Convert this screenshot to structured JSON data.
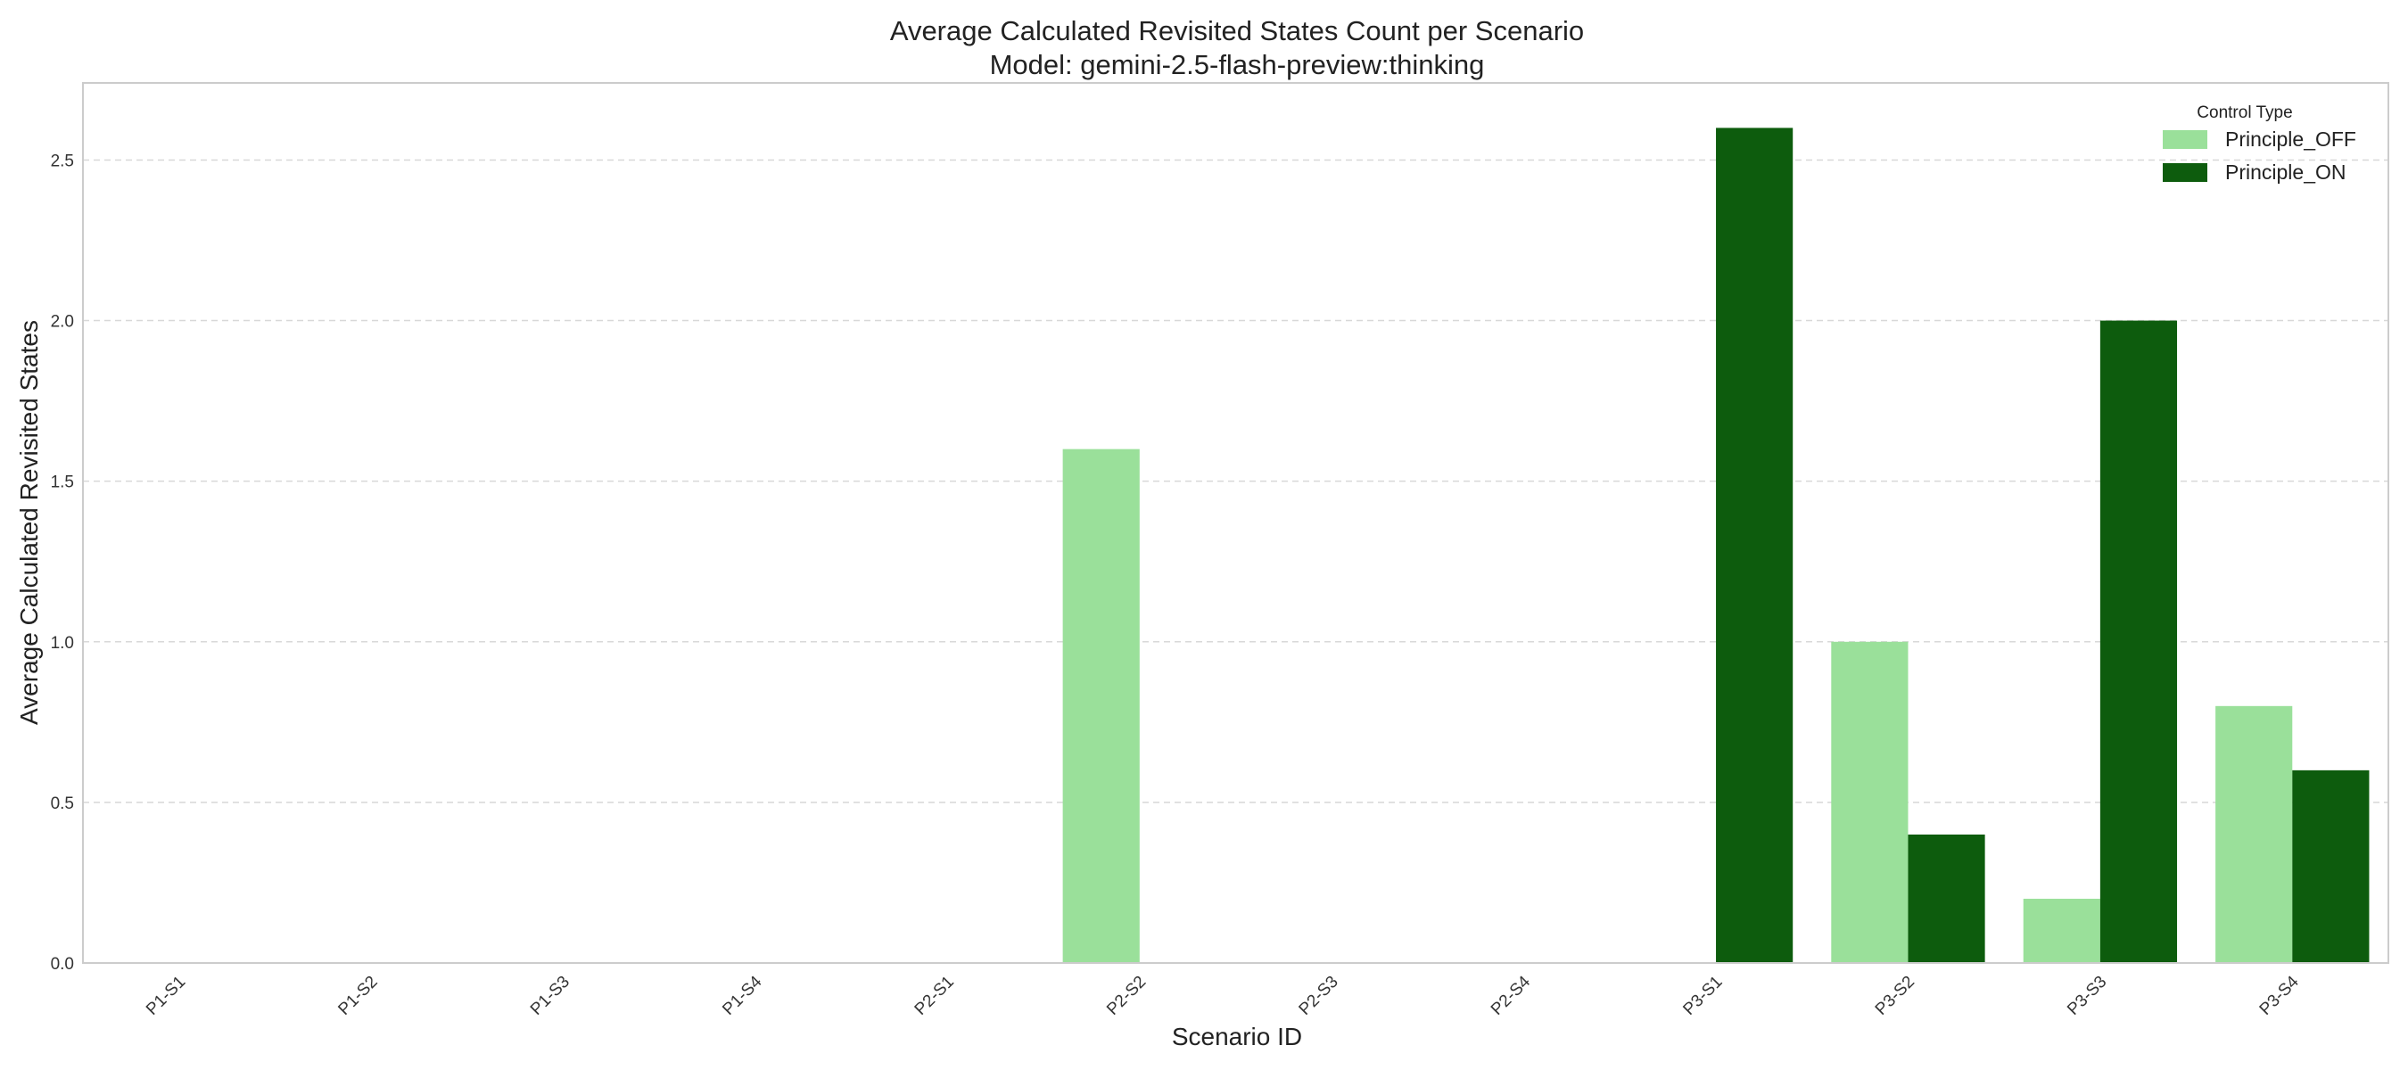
{
  "chart_data": {
    "type": "bar",
    "title": "Average Calculated Revisited States Count per Scenario",
    "subtitle": "Model: gemini-2.5-flash-preview:thinking",
    "xlabel": "Scenario ID",
    "ylabel": "Average Calculated Revisited States",
    "categories": [
      "P1-S1",
      "P1-S2",
      "P1-S3",
      "P1-S4",
      "P2-S1",
      "P2-S2",
      "P2-S3",
      "P2-S4",
      "P3-S1",
      "P3-S2",
      "P3-S3",
      "P3-S4"
    ],
    "series": [
      {
        "name": "Principle_OFF",
        "color": "#9ae09a",
        "values": [
          0,
          0,
          0,
          0,
          0,
          1.6,
          0,
          0,
          0,
          1.0,
          0.2,
          0.8
        ]
      },
      {
        "name": "Principle_ON",
        "color": "#0d5c0d",
        "values": [
          0,
          0,
          0,
          0,
          0,
          0,
          0,
          0,
          2.6,
          0.4,
          2.0,
          0.6
        ]
      }
    ],
    "ylim": [
      0,
      2.74
    ],
    "yticks": [
      "0.0",
      "0.5",
      "1.0",
      "1.5",
      "2.0",
      "2.5"
    ],
    "grid": "horizontal dashed",
    "legend": {
      "title": "Control Type",
      "placement": "top-right"
    }
  }
}
